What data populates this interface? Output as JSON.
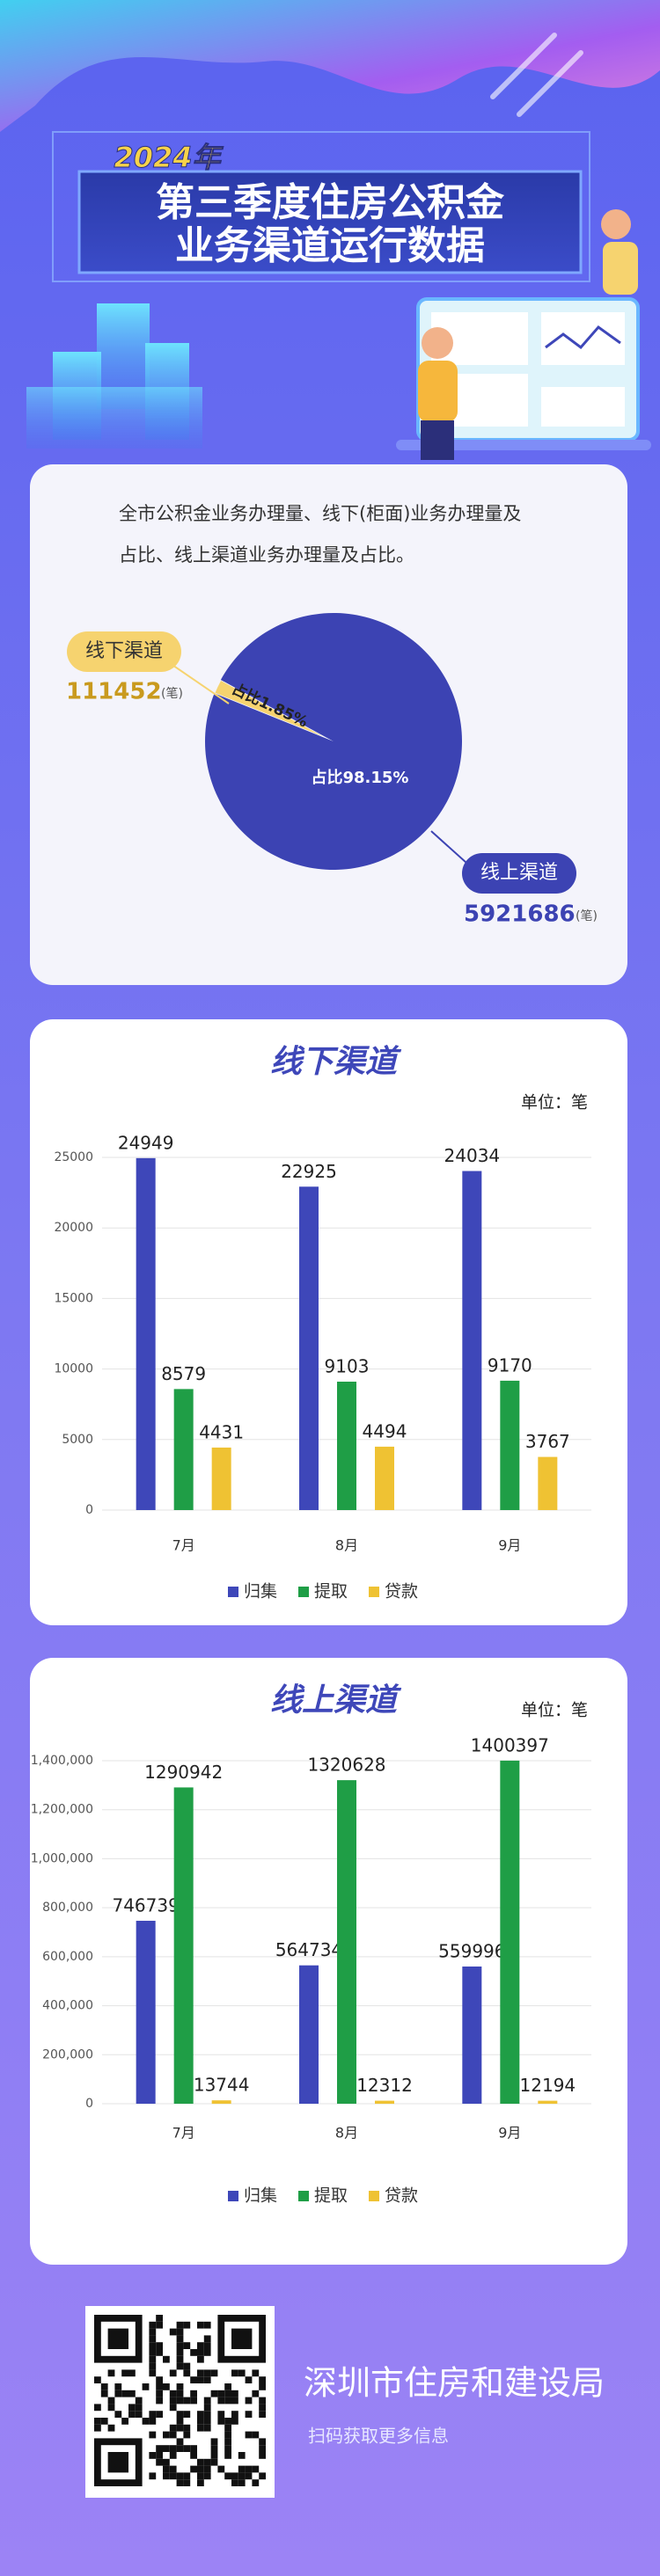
{
  "header": {
    "year": "2024年",
    "title_lines": [
      "第三季度住房公积金",
      "业务渠道运行数据"
    ]
  },
  "description_lines": [
    "全市公积金业务办理量、线下(柜面)业务办理量及",
    "占比、线上渠道业务办理量及占比。"
  ],
  "chart_data": [
    {
      "type": "pie",
      "categories": [
        "线下渠道",
        "线上渠道"
      ],
      "values": [
        1.85,
        98.15
      ],
      "value_labels": [
        "占比1.85%",
        "占比98.15%"
      ],
      "counts": [
        111452,
        5921686
      ],
      "count_unit": "(笔)",
      "colors": [
        "#f6d36f",
        "#3c43b3"
      ]
    },
    {
      "type": "bar",
      "title": "线下渠道",
      "unit": "单位：笔",
      "categories": [
        "7月",
        "8月",
        "9月"
      ],
      "series": [
        {
          "name": "归集",
          "color": "#3e47b9",
          "values": [
            24949,
            22925,
            24034
          ]
        },
        {
          "name": "提取",
          "color": "#1f9e46",
          "values": [
            8579,
            9103,
            9170
          ]
        },
        {
          "name": "贷款",
          "color": "#efc233",
          "values": [
            4431,
            4494,
            3767
          ]
        }
      ],
      "ylim": [
        0,
        25000
      ],
      "yticks": [
        0,
        5000,
        10000,
        15000,
        20000,
        25000
      ],
      "grid": true,
      "legend": "bottom"
    },
    {
      "type": "bar",
      "title": "线上渠道",
      "unit": "单位：笔",
      "categories": [
        "7月",
        "8月",
        "9月"
      ],
      "series": [
        {
          "name": "归集",
          "color": "#3e47b9",
          "values": [
            746739,
            564734,
            559996
          ]
        },
        {
          "name": "提取",
          "color": "#1f9e46",
          "values": [
            1290942,
            1320628,
            1400397
          ]
        },
        {
          "name": "贷款",
          "color": "#efc233",
          "values": [
            13744,
            12312,
            12194
          ]
        }
      ],
      "ylim": [
        0,
        1400000
      ],
      "yticks": [
        0,
        {
          "value": 200000,
          "label": "200,000"
        },
        {
          "value": 400000,
          "label": "400,000"
        },
        {
          "value": 600000,
          "label": "600,000"
        },
        {
          "value": 800000,
          "label": "800,000"
        },
        {
          "value": 1000000,
          "label": "1,000,000"
        },
        {
          "value": 1200000,
          "label": "1,200,000"
        },
        {
          "value": 1400000,
          "label": "1,400,000"
        }
      ],
      "grid": true,
      "legend": "bottom"
    }
  ],
  "footer": {
    "org": "深圳市住房和建设局",
    "hint": "扫码获取更多信息"
  }
}
